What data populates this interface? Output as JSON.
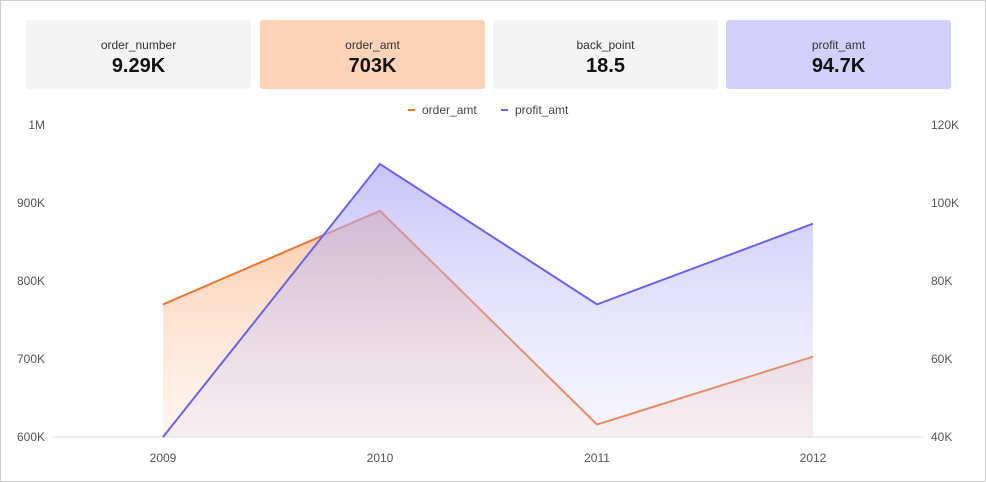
{
  "kpis": [
    {
      "label": "order_number",
      "value": "9.29K",
      "bg": "#f4f4f4"
    },
    {
      "label": "order_amt",
      "value": "703K",
      "bg": "#fdd3b7"
    },
    {
      "label": "back_point",
      "value": "18.5",
      "bg": "#f4f4f4"
    },
    {
      "label": "profit_amt",
      "value": "94.7K",
      "bg": "#d2d0fb"
    }
  ],
  "chart_data": {
    "type": "area",
    "categories": [
      "2009",
      "2010",
      "2011",
      "2012"
    ],
    "series": [
      {
        "name": "order_amt",
        "axis": "left",
        "color": "#f07531",
        "values": [
          770000,
          890000,
          616000,
          703000
        ]
      },
      {
        "name": "profit_amt",
        "axis": "right",
        "color": "#6b63ec",
        "values": [
          40000,
          110000,
          74000,
          94700
        ]
      }
    ],
    "left_axis": {
      "min": 600000,
      "max": 1000000,
      "ticks": [
        "600K",
        "700K",
        "800K",
        "900K",
        "1M"
      ]
    },
    "right_axis": {
      "min": 40000,
      "max": 120000,
      "ticks": [
        "40K",
        "60K",
        "80K",
        "100K",
        "120K"
      ]
    },
    "legend_position": "top-center",
    "grid": false
  }
}
